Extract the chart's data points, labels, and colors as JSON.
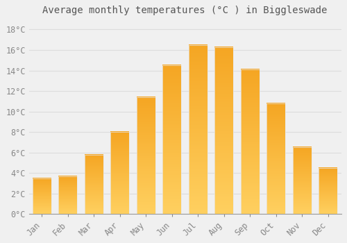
{
  "months": [
    "Jan",
    "Feb",
    "Mar",
    "Apr",
    "May",
    "Jun",
    "Jul",
    "Aug",
    "Sep",
    "Oct",
    "Nov",
    "Dec"
  ],
  "values": [
    3.5,
    3.7,
    5.8,
    8.0,
    11.4,
    14.5,
    16.5,
    16.3,
    14.1,
    10.8,
    6.5,
    4.5
  ],
  "bar_color_main": "#F5A623",
  "bar_color_light": "#FFD060",
  "bar_edge_color": "#E8E8E8",
  "title": "Average monthly temperatures (°C ) in Biggleswade",
  "ylim": [
    0,
    19
  ],
  "yticks": [
    0,
    2,
    4,
    6,
    8,
    10,
    12,
    14,
    16,
    18
  ],
  "ytick_labels": [
    "0°C",
    "2°C",
    "4°C",
    "6°C",
    "8°C",
    "10°C",
    "12°C",
    "14°C",
    "16°C",
    "18°C"
  ],
  "background_color": "#F0F0F0",
  "grid_color": "#DDDDDD",
  "title_fontsize": 10,
  "tick_fontsize": 8.5,
  "title_color": "#555555",
  "tick_color": "#888888",
  "bar_width": 0.72
}
